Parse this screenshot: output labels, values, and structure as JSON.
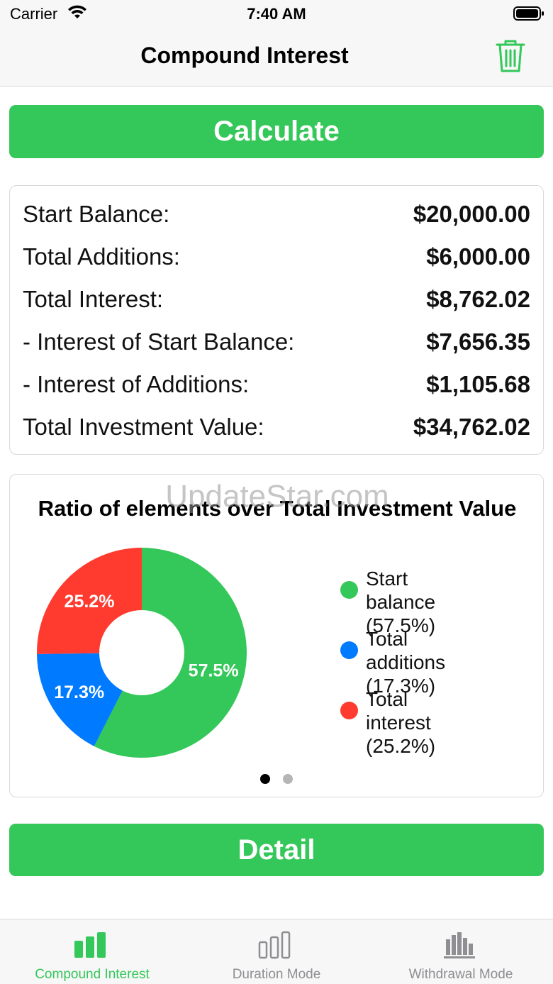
{
  "status_bar": {
    "carrier": "Carrier",
    "time": "7:40 AM"
  },
  "nav": {
    "title": "Compound Interest"
  },
  "buttons": {
    "calculate": "Calculate",
    "detail": "Detail"
  },
  "summary": [
    {
      "label": "Start Balance:",
      "value": "$20,000.00"
    },
    {
      "label": "Total Additions:",
      "value": "$6,000.00"
    },
    {
      "label": "Total Interest:",
      "value": "$8,762.02"
    },
    {
      "label": "- Interest of Start Balance:",
      "value": "$7,656.35"
    },
    {
      "label": "- Interest of Additions:",
      "value": "$1,105.68"
    },
    {
      "label": "Total Investment Value:",
      "value": "$34,762.02"
    }
  ],
  "watermark": "UpdateStar.com",
  "chart_data": {
    "type": "pie",
    "title": "Ratio of elements over Total Investment Value",
    "donut": true,
    "slices": [
      {
        "legend": "Start balance",
        "legend_pct": "(57.5%)",
        "value": 57.5,
        "label": "57.5%",
        "color": "#34c759"
      },
      {
        "legend": "Total additions",
        "legend_pct": "(17.3%)",
        "value": 17.3,
        "label": "17.3%",
        "color": "#007aff"
      },
      {
        "legend": "Total interest",
        "legend_pct": "(25.2%)",
        "value": 25.2,
        "label": "25.2%",
        "color": "#ff3b30"
      }
    ],
    "legend_position": "right"
  },
  "pager": {
    "count": 2,
    "active": 0
  },
  "tabs": [
    {
      "label": "Compound Interest",
      "active": true
    },
    {
      "label": "Duration Mode",
      "active": false
    },
    {
      "label": "Withdrawal Mode",
      "active": false
    }
  ],
  "colors": {
    "accent": "#34c759",
    "inactive": "#8e8e93"
  }
}
